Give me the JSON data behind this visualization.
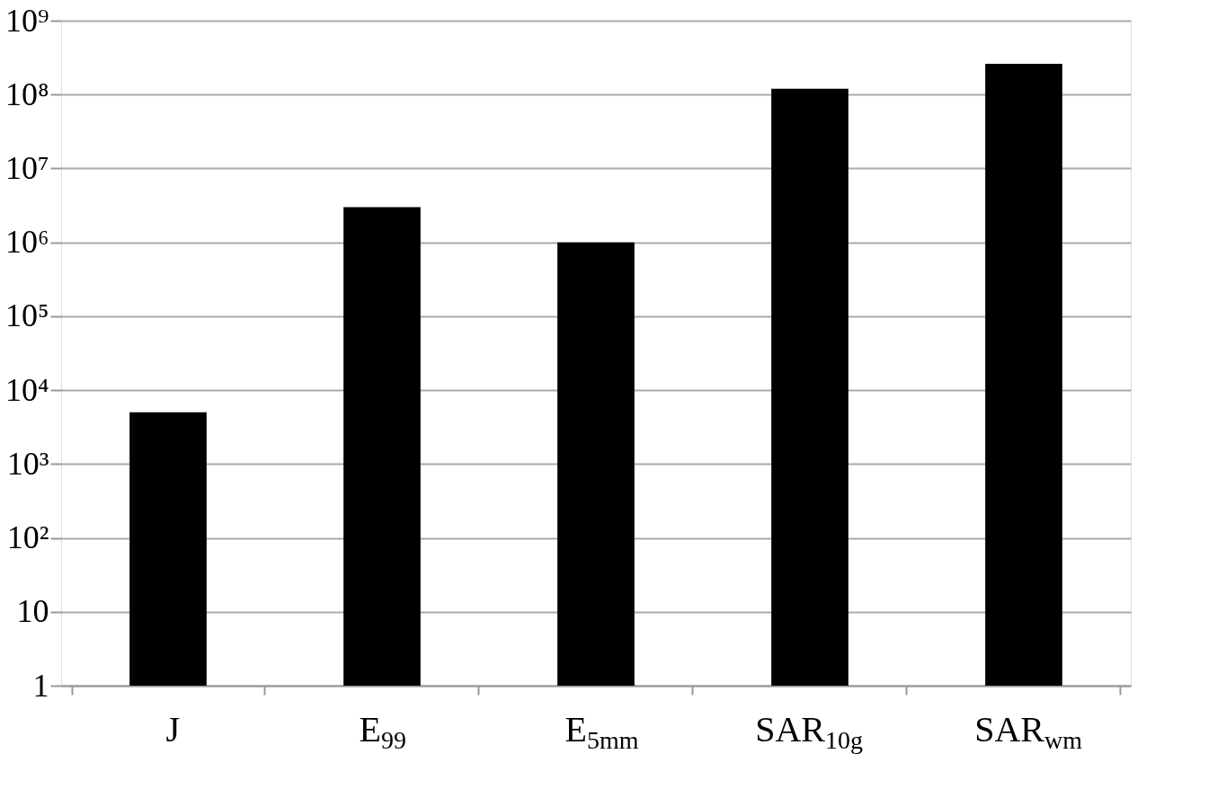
{
  "chart_data": {
    "type": "bar",
    "categories": [
      "J",
      "E$_{99}$",
      "E$_{5mm}$",
      "SAR$_{10g}$",
      "SAR$_{wm}$"
    ],
    "values": [
      5000,
      3000000,
      1000000,
      120000000,
      260000000
    ],
    "color": "#000000",
    "log": "y",
    "ylim": [
      1,
      1000000000
    ],
    "yticks": [
      1,
      10,
      {
        "value": 100,
        "label": "10²"
      },
      {
        "value": 1000,
        "label": "10³"
      },
      {
        "value": 10000,
        "label": "10⁴"
      },
      {
        "value": 100000,
        "label": "10⁵"
      },
      {
        "value": 1000000,
        "label": "10⁶"
      },
      {
        "value": 10000000,
        "label": "10⁷"
      },
      {
        "value": 100000000,
        "label": "10⁸"
      },
      {
        "value": 1000000000,
        "label": "10⁹"
      }
    ],
    "grid": "y",
    "legend": false
  }
}
